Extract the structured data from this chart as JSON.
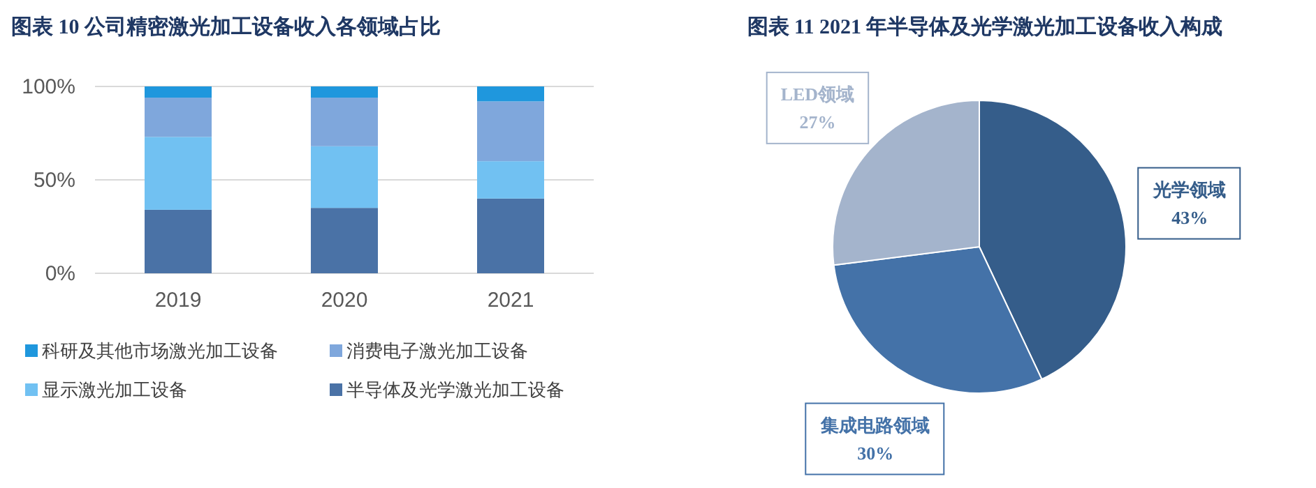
{
  "chart_data": [
    {
      "type": "bar",
      "title": "图表 10 公司精密激光加工设备收入各领域占比",
      "categories": [
        "2019",
        "2020",
        "2021"
      ],
      "stacked": true,
      "series": [
        {
          "name": "半导体及光学激光加工设备",
          "color": "#4a72a6",
          "values": [
            34,
            35,
            40
          ]
        },
        {
          "name": "显示激光加工设备",
          "color": "#71c1f2",
          "values": [
            39,
            33,
            20
          ]
        },
        {
          "name": "消费电子激光加工设备",
          "color": "#7fa7dc",
          "values": [
            21,
            26,
            32
          ]
        },
        {
          "name": "科研及其他市场激光加工设备",
          "color": "#1f97dd",
          "values": [
            6,
            6,
            8
          ]
        }
      ],
      "ylim": [
        0,
        100
      ],
      "yticks": [
        {
          "value": 0,
          "label": "0%"
        },
        {
          "value": 50,
          "label": "50%"
        },
        {
          "value": 100,
          "label": "100%"
        }
      ],
      "grid": "y",
      "legend": "bottom"
    },
    {
      "type": "pie",
      "title": "图表 11 2021 年半导体及光学激光加工设备收入构成",
      "categories": [
        "光学领域",
        "集成电路领域",
        "LED领域"
      ],
      "values": [
        43,
        30,
        27
      ],
      "colors": [
        "#355d8a",
        "#4472a8",
        "#a4b4cc"
      ],
      "value_labels": [
        "43%",
        "30%",
        "27%"
      ]
    }
  ]
}
